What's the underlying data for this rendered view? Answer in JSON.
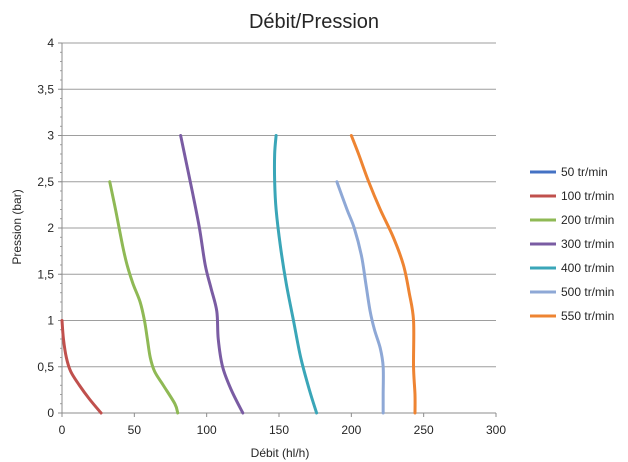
{
  "chart_data": {
    "type": "line",
    "title": "Débit/Pression",
    "xlabel": "Débit (hl/h)",
    "ylabel": "Pression (bar)",
    "xlim": [
      0,
      300
    ],
    "ylim": [
      0,
      4
    ],
    "x_ticks": [
      "0",
      "50",
      "100",
      "150",
      "200",
      "250",
      "300"
    ],
    "y_ticks": [
      "0",
      "0,5",
      "1",
      "1,5",
      "2",
      "2,5",
      "3",
      "3,5",
      "4"
    ],
    "grid": "horizontal",
    "legend_position": "right",
    "series": [
      {
        "name": "50 tr/min",
        "color": "#4472C4",
        "points": []
      },
      {
        "name": "100 tr/min",
        "color": "#C0504D",
        "points": [
          [
            0,
            1
          ],
          [
            1,
            0.8
          ],
          [
            3,
            0.6
          ],
          [
            6,
            0.45
          ],
          [
            12,
            0.3
          ],
          [
            19,
            0.15
          ],
          [
            27,
            0
          ]
        ]
      },
      {
        "name": "200 tr/min",
        "color": "#8FB955",
        "points": [
          [
            33,
            2.5
          ],
          [
            37,
            2.2
          ],
          [
            42,
            1.8
          ],
          [
            45,
            1.6
          ],
          [
            49,
            1.4
          ],
          [
            54,
            1.2
          ],
          [
            57,
            1.0
          ],
          [
            59,
            0.8
          ],
          [
            61,
            0.6
          ],
          [
            64,
            0.45
          ],
          [
            70,
            0.3
          ],
          [
            78,
            0.1
          ],
          [
            80,
            0
          ]
        ]
      },
      {
        "name": "300 tr/min",
        "color": "#7A5CA3",
        "points": [
          [
            82,
            3
          ],
          [
            86,
            2.7
          ],
          [
            90,
            2.4
          ],
          [
            95,
            2.0
          ],
          [
            99,
            1.6
          ],
          [
            103,
            1.35
          ],
          [
            107,
            1.1
          ],
          [
            108,
            0.8
          ],
          [
            111,
            0.5
          ],
          [
            117,
            0.25
          ],
          [
            125,
            0
          ]
        ]
      },
      {
        "name": "400 tr/min",
        "color": "#3AA6B8",
        "points": [
          [
            148,
            3
          ],
          [
            147,
            2.8
          ],
          [
            147,
            2.5
          ],
          [
            148,
            2.2
          ],
          [
            151,
            1.8
          ],
          [
            155,
            1.4
          ],
          [
            160,
            1.0
          ],
          [
            165,
            0.6
          ],
          [
            171,
            0.25
          ],
          [
            176,
            0
          ]
        ]
      },
      {
        "name": "500 tr/min",
        "color": "#8EA8D6",
        "points": [
          [
            190,
            2.5
          ],
          [
            197,
            2.2
          ],
          [
            202,
            2.0
          ],
          [
            207,
            1.7
          ],
          [
            210,
            1.4
          ],
          [
            213,
            1.1
          ],
          [
            216,
            0.9
          ],
          [
            220,
            0.7
          ],
          [
            222,
            0.5
          ],
          [
            222,
            0.2
          ],
          [
            222,
            0
          ]
        ]
      },
      {
        "name": "550 tr/min",
        "color": "#EE8432",
        "points": [
          [
            200,
            3
          ],
          [
            205,
            2.8
          ],
          [
            212,
            2.5
          ],
          [
            220,
            2.2
          ],
          [
            229,
            1.9
          ],
          [
            236,
            1.6
          ],
          [
            240,
            1.3
          ],
          [
            243,
            1.0
          ],
          [
            243,
            0.5
          ],
          [
            244,
            0.2
          ],
          [
            244,
            0
          ]
        ]
      }
    ]
  }
}
